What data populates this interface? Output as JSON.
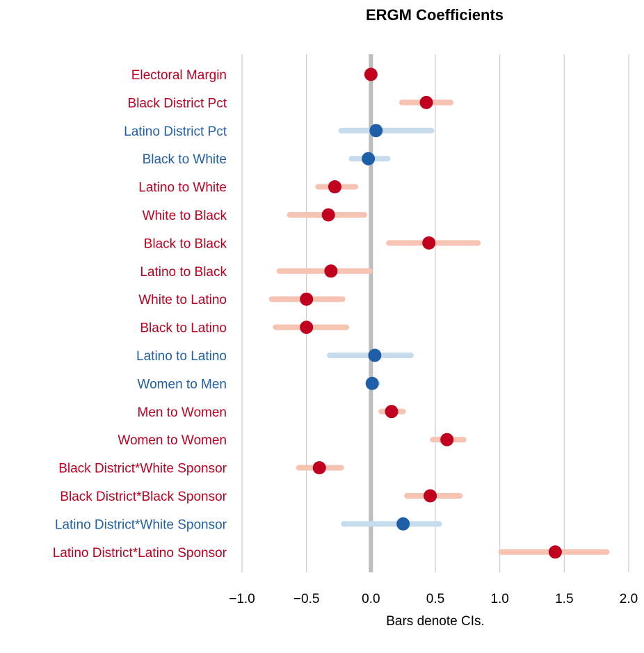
{
  "chart_data": {
    "type": "scatter",
    "title": "ERGM Coefficients",
    "xlabel": "Bars denote CIs.",
    "xlim": [
      -1.0,
      2.0
    ],
    "xticks": [
      "−1.0",
      "−0.5",
      "0.0",
      "0.5",
      "1.0",
      "1.5",
      "2.0"
    ],
    "xtick_values": [
      -1.0,
      -0.5,
      0.0,
      0.5,
      1.0,
      1.5,
      2.0
    ],
    "colors": {
      "significant_point": "#c0001e",
      "significant_ci": "#f7c4b4",
      "nonsignificant_point": "#1f5fa8",
      "nonsignificant_ci": "#c6dcec",
      "zero_line": "#bdbdbd",
      "gridline": "#cccccc"
    },
    "points": [
      {
        "label": "Electoral Margin",
        "estimate": 0.0,
        "lower": -0.01,
        "upper": 0.01,
        "significant": true
      },
      {
        "label": "Black District Pct",
        "estimate": 0.43,
        "lower": 0.24,
        "upper": 0.62,
        "significant": true
      },
      {
        "label": "Latino District Pct",
        "estimate": 0.04,
        "lower": -0.23,
        "upper": 0.47,
        "significant": false
      },
      {
        "label": "Black to White",
        "estimate": -0.02,
        "lower": -0.15,
        "upper": 0.13,
        "significant": false
      },
      {
        "label": "Latino to White",
        "estimate": -0.28,
        "lower": -0.41,
        "upper": -0.12,
        "significant": true
      },
      {
        "label": "White to Black",
        "estimate": -0.33,
        "lower": -0.63,
        "upper": -0.05,
        "significant": true
      },
      {
        "label": "Black to Black",
        "estimate": 0.45,
        "lower": 0.14,
        "upper": 0.83,
        "significant": true
      },
      {
        "label": "Latino to Black",
        "estimate": -0.31,
        "lower": -0.71,
        "upper": -0.01,
        "significant": true
      },
      {
        "label": "White to Latino",
        "estimate": -0.5,
        "lower": -0.77,
        "upper": -0.22,
        "significant": true
      },
      {
        "label": "Black to Latino",
        "estimate": -0.5,
        "lower": -0.74,
        "upper": -0.19,
        "significant": true
      },
      {
        "label": "Latino to Latino",
        "estimate": 0.03,
        "lower": -0.32,
        "upper": 0.31,
        "significant": false
      },
      {
        "label": "Women to Men",
        "estimate": 0.01,
        "lower": -0.02,
        "upper": 0.05,
        "significant": false
      },
      {
        "label": "Men to Women",
        "estimate": 0.16,
        "lower": 0.08,
        "upper": 0.25,
        "significant": true
      },
      {
        "label": "Women to Women",
        "estimate": 0.59,
        "lower": 0.48,
        "upper": 0.72,
        "significant": true
      },
      {
        "label": "Black District*White Sponsor",
        "estimate": -0.4,
        "lower": -0.56,
        "upper": -0.23,
        "significant": true
      },
      {
        "label": "Black District*Black Sponsor",
        "estimate": 0.46,
        "lower": 0.28,
        "upper": 0.69,
        "significant": true
      },
      {
        "label": "Latino District*White Sponsor",
        "estimate": 0.25,
        "lower": -0.21,
        "upper": 0.53,
        "significant": false
      },
      {
        "label": "Latino District*Latino Sponsor",
        "estimate": 1.43,
        "lower": 1.01,
        "upper": 1.83,
        "significant": true
      }
    ]
  }
}
